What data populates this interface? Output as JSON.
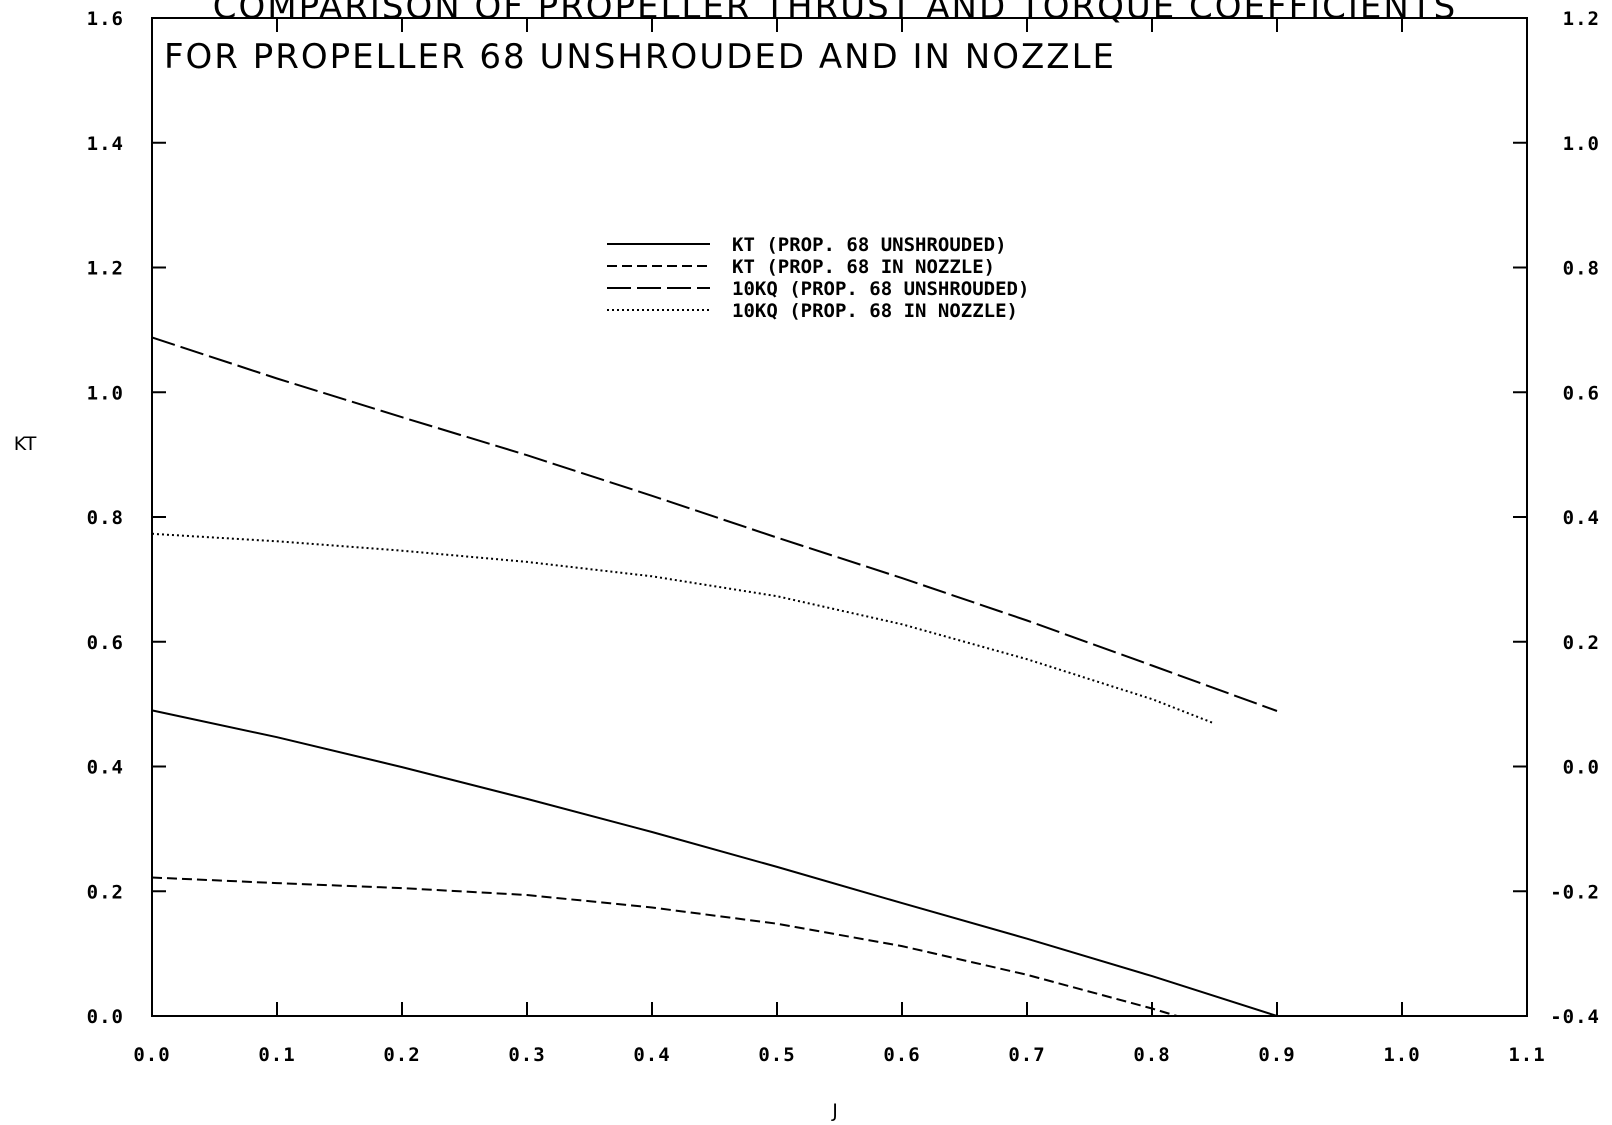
{
  "chart_data": {
    "type": "line",
    "title": "COMPARISON OF PROPELLER THRUST AND TORQUE COEFFICIENTS",
    "subtitle": "FOR PROPELLER 68 UNSHROUDED AND IN NOZZLE",
    "xlabel": "J",
    "ylabel": "KT",
    "xlim": [
      0.0,
      1.1
    ],
    "ylim": [
      0.0,
      1.6
    ],
    "y2lim": [
      -0.4,
      1.2
    ],
    "x_ticks": [
      "0.0",
      "0.1",
      "0.2",
      "0.3",
      "0.4",
      "0.5",
      "0.6",
      "0.7",
      "0.8",
      "0.9",
      "1.0",
      "1.1"
    ],
    "y_ticks": [
      "0.0",
      "0.2",
      "0.4",
      "0.6",
      "0.8",
      "1.0",
      "1.2",
      "1.4",
      "1.6"
    ],
    "y2_ticks": [
      "-0.4",
      "-0.2",
      "0.0",
      "0.2",
      "0.4",
      "0.6",
      "0.8",
      "1.0",
      "1.2"
    ],
    "grid": false,
    "legend_position": "top-center",
    "series": [
      {
        "name": "KT (PROP. 68 UNSHROUDED)",
        "axis": "left",
        "dash": "solid",
        "x": [
          0.0,
          0.1,
          0.2,
          0.3,
          0.4,
          0.5,
          0.6,
          0.7,
          0.8,
          0.9
        ],
        "y": [
          0.49,
          0.447,
          0.399,
          0.348,
          0.295,
          0.239,
          0.181,
          0.124,
          0.064,
          0.0
        ]
      },
      {
        "name": "KT (PROP. 68 IN NOZZLE)",
        "axis": "left",
        "dash": "dashed",
        "x": [
          0.0,
          0.1,
          0.2,
          0.3,
          0.4,
          0.5,
          0.6,
          0.7,
          0.8,
          0.82
        ],
        "y": [
          0.222,
          0.213,
          0.205,
          0.194,
          0.174,
          0.148,
          0.112,
          0.066,
          0.012,
          0.0
        ]
      },
      {
        "name": "10KQ (PROP. 68 UNSHROUDED)",
        "axis": "right",
        "dash": "long-dash",
        "x": [
          0.0,
          0.1,
          0.2,
          0.3,
          0.4,
          0.5,
          0.6,
          0.7,
          0.8,
          0.9
        ],
        "y": [
          0.688,
          0.622,
          0.56,
          0.499,
          0.434,
          0.367,
          0.302,
          0.234,
          0.162,
          0.089
        ]
      },
      {
        "name": "10KQ (PROP. 68 IN NOZZLE)",
        "axis": "right",
        "dash": "dotted",
        "x": [
          0.0,
          0.1,
          0.2,
          0.3,
          0.4,
          0.5,
          0.6,
          0.7,
          0.8,
          0.85
        ],
        "y": [
          0.373,
          0.361,
          0.346,
          0.328,
          0.305,
          0.273,
          0.228,
          0.172,
          0.108,
          0.069
        ]
      }
    ]
  }
}
